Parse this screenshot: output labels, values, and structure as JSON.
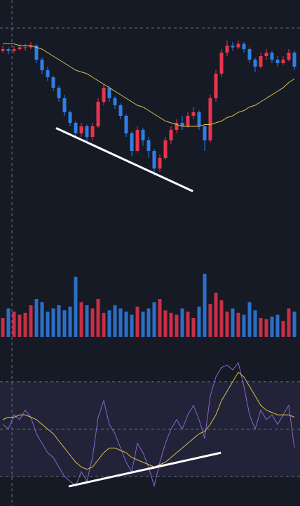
{
  "chart_data": {
    "type": "candlestick",
    "up_color": "#e8344e",
    "down_color": "#2f7fe6",
    "ma_color": "#d9c24a",
    "rsi_color": "#8a63d2",
    "trendline_color": "#ffffff",
    "xlim": [
      -0.5,
      53
    ],
    "ylim": [
      0,
      100
    ],
    "open": [
      87,
      88,
      87,
      88,
      89,
      89,
      90,
      82,
      76,
      72,
      66,
      60,
      52,
      46,
      40,
      44,
      38,
      44,
      58,
      66,
      60,
      56,
      50,
      40,
      30,
      42,
      36,
      30,
      20,
      26,
      36,
      42,
      46,
      44,
      50,
      52,
      44,
      36,
      60,
      74,
      86,
      90,
      89,
      91,
      88,
      82,
      78,
      84,
      86,
      82,
      80,
      82,
      86
    ],
    "high": [
      90,
      89,
      90,
      91,
      91,
      92,
      91,
      83,
      78,
      73,
      67,
      62,
      53,
      47,
      46,
      45,
      46,
      60,
      68,
      67,
      61,
      57,
      51,
      41,
      44,
      43,
      38,
      31,
      28,
      38,
      44,
      48,
      50,
      52,
      55,
      53,
      45,
      62,
      76,
      88,
      93,
      92,
      93,
      92,
      89,
      83,
      86,
      88,
      87,
      84,
      84,
      88,
      87
    ],
    "low": [
      86,
      85,
      86,
      87,
      87,
      88,
      80,
      74,
      70,
      64,
      58,
      50,
      44,
      37,
      38,
      35,
      36,
      43,
      56,
      58,
      54,
      48,
      38,
      27,
      29,
      33,
      26,
      16,
      18,
      25,
      34,
      40,
      42,
      43,
      48,
      42,
      30,
      35,
      58,
      72,
      84,
      87,
      88,
      86,
      80,
      75,
      77,
      82,
      80,
      78,
      79,
      81,
      76
    ],
    "close": [
      88,
      87,
      88,
      89,
      89,
      90,
      82,
      76,
      72,
      66,
      60,
      52,
      46,
      40,
      44,
      38,
      44,
      58,
      66,
      60,
      56,
      50,
      40,
      30,
      42,
      36,
      30,
      20,
      26,
      36,
      42,
      46,
      44,
      50,
      52,
      44,
      36,
      60,
      74,
      86,
      90,
      89,
      91,
      88,
      82,
      78,
      84,
      86,
      82,
      80,
      82,
      86,
      78
    ],
    "ma": [
      91,
      91,
      91,
      90,
      90,
      90,
      89,
      88,
      86,
      84,
      82,
      80,
      78,
      76,
      75,
      74,
      72,
      70,
      68,
      66,
      64,
      62,
      60,
      58,
      56,
      55,
      53,
      51,
      49,
      47,
      46,
      45,
      44,
      44,
      44,
      44,
      45,
      45,
      46,
      47,
      49,
      50,
      52,
      53,
      55,
      56,
      58,
      60,
      62,
      64,
      66,
      69,
      71
    ],
    "trendline": {
      "x": [
        9.5,
        33.9
      ],
      "y": [
        43,
        7
      ]
    },
    "volume": {
      "ylim": [
        0,
        100
      ],
      "values": [
        30,
        45,
        40,
        35,
        38,
        50,
        60,
        55,
        40,
        45,
        50,
        42,
        48,
        95,
        55,
        50,
        45,
        60,
        38,
        42,
        50,
        45,
        40,
        35,
        48,
        40,
        45,
        55,
        60,
        42,
        38,
        35,
        45,
        40,
        30,
        48,
        100,
        52,
        70,
        58,
        40,
        45,
        38,
        35,
        55,
        42,
        30,
        28,
        32,
        35,
        25,
        45,
        40
      ]
    },
    "rsi": {
      "ylim": [
        19,
        83
      ],
      "yticks": [
        30,
        50,
        70
      ],
      "values": [
        52,
        50,
        56,
        54,
        58,
        55,
        48,
        44,
        40,
        38,
        34,
        30,
        28,
        26,
        32,
        28,
        38,
        55,
        62,
        52,
        48,
        42,
        36,
        32,
        44,
        40,
        34,
        26,
        36,
        44,
        50,
        54,
        50,
        56,
        60,
        54,
        46,
        64,
        72,
        76,
        77,
        75,
        78,
        68,
        56,
        50,
        58,
        54,
        56,
        52,
        56,
        60,
        42
      ],
      "ma": [
        54,
        55,
        55,
        56,
        56,
        55,
        54,
        52,
        50,
        48,
        45,
        42,
        39,
        36,
        34,
        33,
        34,
        37,
        40,
        42,
        42,
        41,
        40,
        38,
        37,
        36,
        35,
        34,
        35,
        36,
        38,
        40,
        42,
        44,
        46,
        48,
        49,
        52,
        56,
        62,
        66,
        70,
        74,
        72,
        68,
        64,
        60,
        58,
        57,
        56,
        56,
        56,
        55
      ],
      "trendline": {
        "x": [
          11.75,
          38.9
        ],
        "y": [
          25.8,
          40
        ]
      }
    }
  }
}
